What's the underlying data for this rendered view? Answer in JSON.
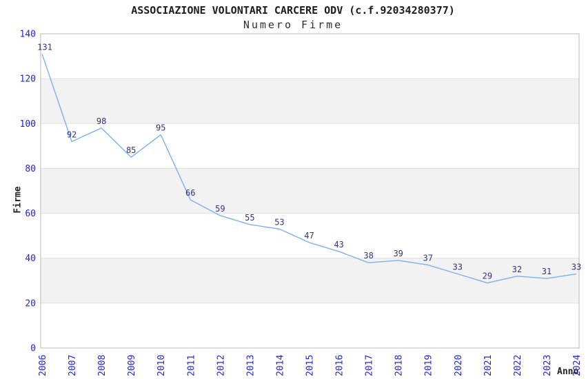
{
  "header": {
    "title": "ASSOCIAZIONE VOLONTARI CARCERE ODV (c.f.92034280377)",
    "subtitle": "Numero Firme"
  },
  "chart_data": {
    "type": "line",
    "title": "ASSOCIAZIONE VOLONTARI CARCERE ODV (c.f.92034280377)",
    "subtitle": "Numero Firme",
    "xlabel": "Anno",
    "ylabel": "Firme",
    "x": [
      "2006",
      "2007",
      "2008",
      "2009",
      "2010",
      "2011",
      "2012",
      "2013",
      "2014",
      "2015",
      "2016",
      "2017",
      "2018",
      "2019",
      "2020",
      "2021",
      "2022",
      "2023",
      "2024"
    ],
    "values": [
      131,
      92,
      98,
      85,
      95,
      66,
      59,
      55,
      53,
      47,
      43,
      38,
      39,
      37,
      33,
      29,
      32,
      31,
      33
    ],
    "ylim": [
      0,
      140
    ],
    "ytick_step": 20,
    "yticks": [
      0,
      20,
      40,
      60,
      80,
      100,
      120,
      140
    ],
    "grid": "alternating-horizontal-bands",
    "legend_position": "none",
    "point_labels_visible": true,
    "colors": {
      "line": "#7cb0f2",
      "point_label": "#333377",
      "tick_label": "#2424d6",
      "band": "#f2f2f2",
      "gridline": "#e0e0e0",
      "plot_border": "#b9b9b9",
      "title": "#1c1c1c",
      "axis_title": "#222222",
      "background": "#ffffff"
    }
  }
}
